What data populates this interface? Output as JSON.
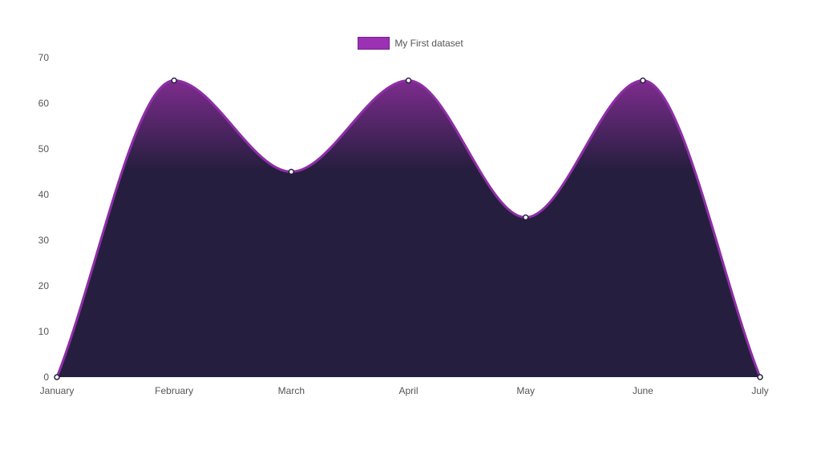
{
  "chart_data": {
    "type": "area",
    "categories": [
      "January",
      "February",
      "March",
      "April",
      "May",
      "June",
      "July"
    ],
    "series": [
      {
        "name": "My First dataset",
        "values": [
          0,
          65,
          45,
          65,
          35,
          65,
          0
        ]
      }
    ],
    "ylim": [
      0,
      70
    ],
    "y_ticks": [
      0,
      10,
      20,
      30,
      40,
      50,
      60,
      70
    ],
    "legend_position": "top-center",
    "grid": false,
    "colors": {
      "line": "#8e2fa6",
      "fill_top": "#7e2c8e",
      "fill_bottom": "#261e3f",
      "legend_fill": "#9b31b3",
      "point_fill": "#ffffff",
      "axis_text": "#555555"
    }
  }
}
